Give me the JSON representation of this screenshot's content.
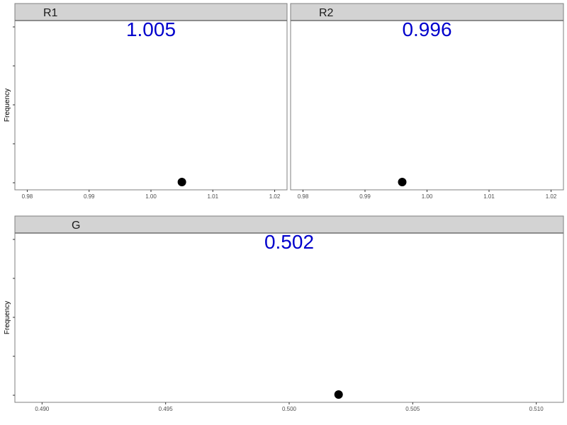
{
  "chart_data": [
    {
      "type": "scatter",
      "panel": "R1",
      "value_label": "1.005",
      "points": [
        {
          "x": 1.005,
          "y": 0
        }
      ],
      "x_ticks": [
        "0.98",
        "0.99",
        "1.00",
        "1.01",
        "1.02"
      ],
      "x_tick_values": [
        0.98,
        0.99,
        1.0,
        1.01,
        1.02
      ],
      "xlim": [
        0.978,
        1.022
      ],
      "ylabel": "Frequency",
      "y_tick_count": 5,
      "grid": false,
      "point_color": "#000000",
      "value_color": "#0000cc"
    },
    {
      "type": "scatter",
      "panel": "R2",
      "value_label": "0.996",
      "points": [
        {
          "x": 0.996,
          "y": 0
        }
      ],
      "x_ticks": [
        "0.98",
        "0.99",
        "1.00",
        "1.01",
        "1.02"
      ],
      "x_tick_values": [
        0.98,
        0.99,
        1.0,
        1.01,
        1.02
      ],
      "xlim": [
        0.978,
        1.022
      ],
      "ylabel": "",
      "y_tick_count": 0,
      "grid": false,
      "point_color": "#000000",
      "value_color": "#0000cc"
    },
    {
      "type": "scatter",
      "panel": "G",
      "value_label": "0.502",
      "points": [
        {
          "x": 0.502,
          "y": 0
        }
      ],
      "x_ticks": [
        "0.490",
        "0.495",
        "0.500",
        "0.505",
        "0.510"
      ],
      "x_tick_values": [
        0.49,
        0.495,
        0.5,
        0.505,
        0.51
      ],
      "xlim": [
        0.4889,
        0.5111
      ],
      "ylabel": "Frequency",
      "y_tick_count": 5,
      "grid": false,
      "point_color": "#000000",
      "value_color": "#0000cc"
    }
  ],
  "colors": {
    "strip_fill": "#d3d3d3",
    "panel_border": "#7f7f7f"
  }
}
